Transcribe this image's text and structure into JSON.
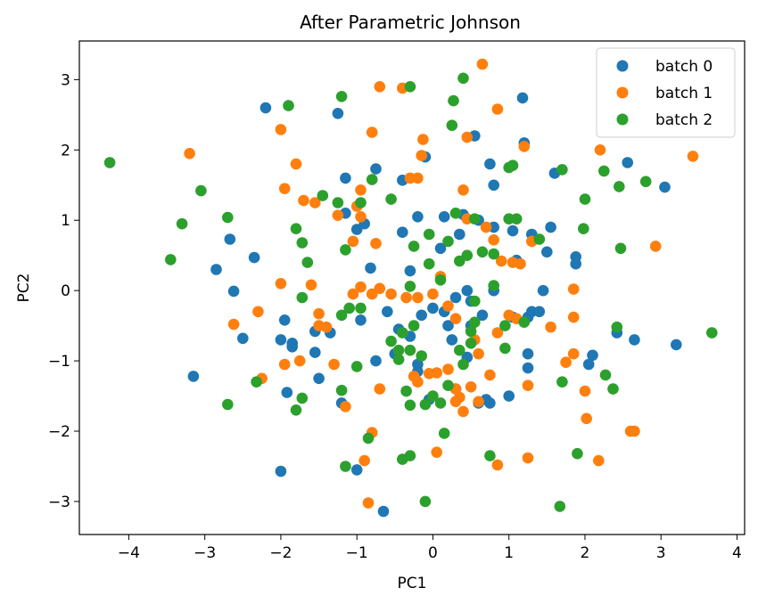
{
  "chart_data": {
    "type": "scatter",
    "title": "After Parametric Johnson",
    "xlabel": "PC1",
    "ylabel": "PC2",
    "xlim": [
      -4.65,
      4.1
    ],
    "ylim": [
      -3.47,
      3.55
    ],
    "xticks": [
      -4,
      -3,
      -2,
      -1,
      0,
      1,
      2,
      3,
      4
    ],
    "yticks": [
      -3,
      -2,
      -1,
      0,
      1,
      2,
      3
    ],
    "xtick_labels": [
      "−4",
      "−3",
      "−2",
      "−1",
      "0",
      "1",
      "2",
      "3",
      "4"
    ],
    "ytick_labels": [
      "−3",
      "−2",
      "−1",
      "0",
      "1",
      "2",
      "3"
    ],
    "grid": false,
    "legend_position": "upper right",
    "series": [
      {
        "name": "batch 0",
        "color": "#1f77b4",
        "points": [
          [
            -2.2,
            2.6
          ],
          [
            -1.25,
            2.52
          ],
          [
            -1.15,
            1.6
          ],
          [
            -1.15,
            1.1
          ],
          [
            -0.75,
            1.73
          ],
          [
            -0.4,
            1.57
          ],
          [
            -0.1,
            1.9
          ],
          [
            0.55,
            2.2
          ],
          [
            1.18,
            2.74
          ],
          [
            1.2,
            2.1
          ],
          [
            0.8,
            1.5
          ],
          [
            0.75,
            1.8
          ],
          [
            0.15,
            1.05
          ],
          [
            0.4,
            1.08
          ],
          [
            -0.2,
            1.05
          ],
          [
            -0.4,
            0.83
          ],
          [
            -1.0,
            0.87
          ],
          [
            -0.9,
            0.95
          ],
          [
            -2.67,
            0.73
          ],
          [
            -2.85,
            0.3
          ],
          [
            -2.35,
            0.47
          ],
          [
            -2.62,
            -0.01
          ],
          [
            -0.82,
            0.32
          ],
          [
            -0.3,
            0.28
          ],
          [
            0.1,
            0.6
          ],
          [
            0.35,
            0.8
          ],
          [
            0.6,
            1.0
          ],
          [
            0.8,
            0.9
          ],
          [
            1.05,
            0.85
          ],
          [
            1.3,
            0.8
          ],
          [
            1.5,
            0.55
          ],
          [
            1.55,
            0.9
          ],
          [
            1.6,
            1.67
          ],
          [
            1.88,
            0.48
          ],
          [
            1.88,
            0.38
          ],
          [
            2.56,
            1.82
          ],
          [
            3.05,
            1.47
          ],
          [
            1.1,
            0.43
          ],
          [
            1.45,
            0.0
          ],
          [
            1.3,
            -0.3
          ],
          [
            1.25,
            -0.38
          ],
          [
            1.4,
            -0.3
          ],
          [
            1.05,
            -0.38
          ],
          [
            0.8,
            0.0
          ],
          [
            0.5,
            -0.15
          ],
          [
            0.45,
            0.0
          ],
          [
            0.3,
            -0.1
          ],
          [
            0.0,
            -0.25
          ],
          [
            -0.15,
            -0.35
          ],
          [
            -0.45,
            -0.55
          ],
          [
            -0.3,
            -0.65
          ],
          [
            -0.6,
            -0.3
          ],
          [
            -0.5,
            -0.9
          ],
          [
            -0.75,
            -1.0
          ],
          [
            -0.95,
            -0.42
          ],
          [
            -1.35,
            -0.6
          ],
          [
            -1.55,
            -0.58
          ],
          [
            -1.5,
            -1.25
          ],
          [
            -1.55,
            -0.88
          ],
          [
            -1.95,
            -0.42
          ],
          [
            -2.0,
            -0.7
          ],
          [
            -1.85,
            -0.75
          ],
          [
            -1.85,
            -0.8
          ],
          [
            -1.92,
            -1.45
          ],
          [
            -2.5,
            -0.68
          ],
          [
            -3.15,
            -1.22
          ],
          [
            -1.2,
            -1.6
          ],
          [
            -1.0,
            -2.55
          ],
          [
            -0.65,
            -3.14
          ],
          [
            -2.0,
            -2.57
          ],
          [
            -0.2,
            -1.05
          ],
          [
            -0.2,
            -1.15
          ],
          [
            -0.05,
            -1.55
          ],
          [
            0.3,
            -1.4
          ],
          [
            0.45,
            -0.95
          ],
          [
            0.25,
            -0.7
          ],
          [
            0.5,
            -0.5
          ],
          [
            0.65,
            -0.35
          ],
          [
            0.6,
            -1.6
          ],
          [
            0.7,
            -1.55
          ],
          [
            0.75,
            -1.6
          ],
          [
            1.0,
            -1.5
          ],
          [
            1.25,
            -1.1
          ],
          [
            1.25,
            -0.9
          ],
          [
            2.1,
            -0.92
          ],
          [
            2.05,
            -1.05
          ],
          [
            2.42,
            -0.6
          ],
          [
            2.65,
            -0.7
          ],
          [
            3.2,
            -0.77
          ],
          [
            0.15,
            -0.3
          ],
          [
            0.2,
            -0.5
          ]
        ]
      },
      {
        "name": "batch 1",
        "color": "#ff7f0e",
        "points": [
          [
            -0.7,
            2.9
          ],
          [
            -0.4,
            2.88
          ],
          [
            0.65,
            3.22
          ],
          [
            0.85,
            2.58
          ],
          [
            -2.0,
            2.29
          ],
          [
            -1.8,
            1.8
          ],
          [
            -0.8,
            2.25
          ],
          [
            -0.3,
            1.6
          ],
          [
            -0.2,
            1.6
          ],
          [
            -0.15,
            1.92
          ],
          [
            -0.13,
            2.15
          ],
          [
            0.45,
            2.18
          ],
          [
            1.2,
            2.05
          ],
          [
            -3.2,
            1.95
          ],
          [
            -1.95,
            1.45
          ],
          [
            -1.7,
            1.28
          ],
          [
            -1.55,
            1.25
          ],
          [
            -1.25,
            1.07
          ],
          [
            -1.0,
            1.2
          ],
          [
            -0.95,
            1.43
          ],
          [
            -0.95,
            1.05
          ],
          [
            -1.05,
            0.7
          ],
          [
            -0.75,
            0.67
          ],
          [
            0.4,
            1.43
          ],
          [
            0.45,
            1.02
          ],
          [
            0.7,
            0.9
          ],
          [
            0.8,
            0.72
          ],
          [
            0.9,
            0.42
          ],
          [
            1.05,
            0.4
          ],
          [
            1.15,
            0.38
          ],
          [
            1.3,
            0.7
          ],
          [
            2.2,
            2.0
          ],
          [
            3.42,
            1.91
          ],
          [
            2.93,
            0.63
          ],
          [
            1.85,
            0.02
          ],
          [
            1.85,
            -0.38
          ],
          [
            1.55,
            -0.52
          ],
          [
            1.1,
            -0.4
          ],
          [
            1.0,
            -0.35
          ],
          [
            0.85,
            -0.6
          ],
          [
            0.6,
            -0.9
          ],
          [
            0.55,
            -0.7
          ],
          [
            0.3,
            -0.4
          ],
          [
            0.2,
            -0.22
          ],
          [
            0.1,
            0.2
          ],
          [
            0.0,
            -0.05
          ],
          [
            -0.2,
            -0.1
          ],
          [
            -0.35,
            -0.1
          ],
          [
            -0.55,
            -0.05
          ],
          [
            -0.7,
            0.03
          ],
          [
            -0.8,
            -0.05
          ],
          [
            -0.95,
            0.05
          ],
          [
            -1.05,
            -0.05
          ],
          [
            -1.5,
            -0.33
          ],
          [
            -1.6,
            0.08
          ],
          [
            -1.5,
            -0.5
          ],
          [
            -1.4,
            -0.52
          ],
          [
            -1.75,
            -1.0
          ],
          [
            -1.95,
            -1.05
          ],
          [
            -2.0,
            0.1
          ],
          [
            -2.3,
            -0.3
          ],
          [
            -2.62,
            -0.48
          ],
          [
            -2.25,
            -1.25
          ],
          [
            -1.3,
            -1.05
          ],
          [
            -1.15,
            -1.65
          ],
          [
            -0.9,
            -2.42
          ],
          [
            -0.8,
            -2.02
          ],
          [
            -0.85,
            -3.02
          ],
          [
            -0.7,
            -1.4
          ],
          [
            -0.25,
            -1.22
          ],
          [
            -0.2,
            -1.3
          ],
          [
            -0.05,
            -1.18
          ],
          [
            0.05,
            -1.17
          ],
          [
            0.2,
            -1.12
          ],
          [
            0.3,
            -1.4
          ],
          [
            0.3,
            -1.58
          ],
          [
            0.35,
            -1.52
          ],
          [
            0.5,
            -1.37
          ],
          [
            0.6,
            -1.58
          ],
          [
            0.4,
            -1.72
          ],
          [
            0.05,
            -2.3
          ],
          [
            0.75,
            -1.2
          ],
          [
            0.85,
            -2.48
          ],
          [
            1.25,
            -2.38
          ],
          [
            1.25,
            -1.35
          ],
          [
            1.75,
            -1.02
          ],
          [
            1.85,
            -0.9
          ],
          [
            2.0,
            -1.43
          ],
          [
            2.02,
            -1.82
          ],
          [
            2.18,
            -2.42
          ],
          [
            2.6,
            -2.0
          ],
          [
            2.65,
            -2.0
          ]
        ]
      },
      {
        "name": "batch 2",
        "color": "#2ca02c",
        "points": [
          [
            -1.2,
            2.76
          ],
          [
            -1.9,
            2.63
          ],
          [
            -0.3,
            2.9
          ],
          [
            0.4,
            3.02
          ],
          [
            0.27,
            2.7
          ],
          [
            0.25,
            2.35
          ],
          [
            -4.25,
            1.82
          ],
          [
            -3.05,
            1.42
          ],
          [
            -3.3,
            0.95
          ],
          [
            -3.45,
            0.44
          ],
          [
            -2.7,
            1.04
          ],
          [
            -1.8,
            0.88
          ],
          [
            -1.72,
            0.68
          ],
          [
            -1.65,
            0.4
          ],
          [
            -1.25,
            1.25
          ],
          [
            -1.45,
            1.35
          ],
          [
            -0.8,
            1.58
          ],
          [
            -0.95,
            1.25
          ],
          [
            -1.15,
            0.58
          ],
          [
            -0.55,
            1.3
          ],
          [
            -0.25,
            0.63
          ],
          [
            -0.05,
            0.8
          ],
          [
            -0.05,
            0.38
          ],
          [
            0.2,
            0.7
          ],
          [
            0.3,
            1.1
          ],
          [
            0.55,
            1.02
          ],
          [
            0.35,
            0.42
          ],
          [
            0.45,
            0.5
          ],
          [
            0.65,
            0.55
          ],
          [
            0.8,
            0.52
          ],
          [
            0.8,
            0.07
          ],
          [
            1.0,
            1.75
          ],
          [
            1.05,
            1.78
          ],
          [
            1.0,
            1.02
          ],
          [
            1.1,
            1.02
          ],
          [
            1.4,
            0.73
          ],
          [
            1.7,
            1.72
          ],
          [
            2.0,
            1.3
          ],
          [
            2.25,
            1.7
          ],
          [
            2.45,
            1.48
          ],
          [
            2.8,
            1.55
          ],
          [
            1.98,
            0.88
          ],
          [
            2.47,
            0.6
          ],
          [
            -0.3,
            0.06
          ],
          [
            0.1,
            0.15
          ],
          [
            -1.2,
            -0.35
          ],
          [
            -1.1,
            -0.25
          ],
          [
            -0.95,
            -0.25
          ],
          [
            -1.0,
            -1.08
          ],
          [
            -0.55,
            -0.72
          ],
          [
            -0.45,
            -0.98
          ],
          [
            -0.4,
            -0.6
          ],
          [
            -0.3,
            -0.85
          ],
          [
            -0.25,
            -0.5
          ],
          [
            -0.15,
            -0.93
          ],
          [
            0.0,
            -1.5
          ],
          [
            0.1,
            -1.6
          ],
          [
            0.2,
            -1.35
          ],
          [
            0.35,
            -0.85
          ],
          [
            0.5,
            -0.58
          ],
          [
            0.55,
            -0.45
          ],
          [
            0.4,
            -1.05
          ],
          [
            0.5,
            -0.75
          ],
          [
            0.55,
            -0.15
          ],
          [
            0.95,
            -0.5
          ],
          [
            1.2,
            -0.45
          ],
          [
            0.95,
            -0.82
          ],
          [
            1.7,
            -1.3
          ],
          [
            1.9,
            -2.32
          ],
          [
            2.27,
            -1.2
          ],
          [
            2.37,
            -1.4
          ],
          [
            2.42,
            -0.52
          ],
          [
            3.67,
            -0.6
          ],
          [
            -1.72,
            -0.1
          ],
          [
            -1.72,
            -1.53
          ],
          [
            -1.8,
            -1.7
          ],
          [
            -2.32,
            -1.3
          ],
          [
            -2.7,
            -1.62
          ],
          [
            -1.2,
            -1.42
          ],
          [
            -0.85,
            -2.1
          ],
          [
            -1.15,
            -2.5
          ],
          [
            -0.35,
            -1.43
          ],
          [
            -0.3,
            -1.63
          ],
          [
            -0.4,
            -2.4
          ],
          [
            -0.3,
            -2.35
          ],
          [
            -0.1,
            -1.62
          ],
          [
            -0.1,
            -3.0
          ],
          [
            0.15,
            -2.03
          ],
          [
            0.75,
            -2.35
          ],
          [
            1.67,
            -3.07
          ],
          [
            -0.45,
            -0.85
          ]
        ]
      }
    ]
  }
}
